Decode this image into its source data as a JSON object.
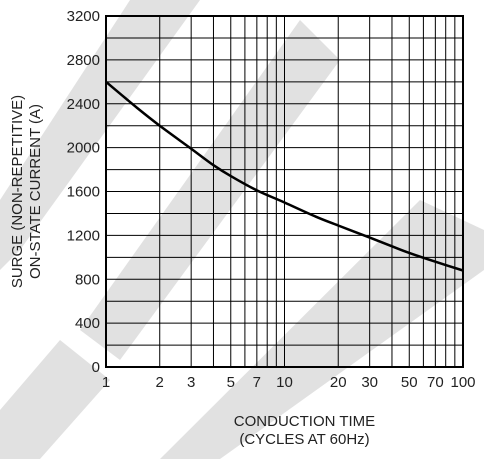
{
  "chart_data": {
    "type": "line",
    "x_scale": "log",
    "y_scale": "linear",
    "xlim": [
      1,
      100
    ],
    "ylim": [
      0,
      3200
    ],
    "grid": true,
    "legend": "none",
    "ylabel_lines": [
      "SURGE (NON-REPETITIVE)",
      "ON-STATE CURRENT (A)"
    ],
    "xlabel_lines": [
      "CONDUCTION TIME",
      "(CYCLES AT 60Hz)"
    ],
    "y_ticks": [
      {
        "value": 0,
        "label": "0"
      },
      {
        "value": 400,
        "label": "400"
      },
      {
        "value": 800,
        "label": "800"
      },
      {
        "value": 1200,
        "label": "1200"
      },
      {
        "value": 1600,
        "label": "1600"
      },
      {
        "value": 2000,
        "label": "2000"
      },
      {
        "value": 2400,
        "label": "2400"
      },
      {
        "value": 2800,
        "label": "2800"
      },
      {
        "value": 3200,
        "label": "3200"
      }
    ],
    "x_ticks": [
      {
        "value": 1,
        "label": "1"
      },
      {
        "value": 2,
        "label": "2"
      },
      {
        "value": 3,
        "label": "3"
      },
      {
        "value": 5,
        "label": "5"
      },
      {
        "value": 7,
        "label": "7"
      },
      {
        "value": 10,
        "label": "10"
      },
      {
        "value": 20,
        "label": "20"
      },
      {
        "value": 30,
        "label": "30"
      },
      {
        "value": 50,
        "label": "50"
      },
      {
        "value": 70,
        "label": "70"
      },
      {
        "value": 100,
        "label": "100"
      }
    ],
    "x_minor_gridlines": [
      2,
      3,
      4,
      5,
      6,
      7,
      8,
      9,
      20,
      30,
      40,
      50,
      60,
      70,
      80,
      90
    ],
    "y_minor_gridlines": [
      200,
      600,
      1000,
      1400,
      1800,
      2200,
      2600,
      3000
    ],
    "series": [
      {
        "x": [
          1,
          1.5,
          2,
          3,
          4,
          5,
          7,
          10,
          15,
          20,
          30,
          40,
          50,
          70,
          100
        ],
        "values": [
          2600,
          2360,
          2200,
          1990,
          1840,
          1740,
          1610,
          1500,
          1370,
          1290,
          1180,
          1100,
          1040,
          960,
          880
        ]
      }
    ]
  },
  "colors": {
    "ink": "#000000",
    "watermark": "#bdbdbd"
  }
}
